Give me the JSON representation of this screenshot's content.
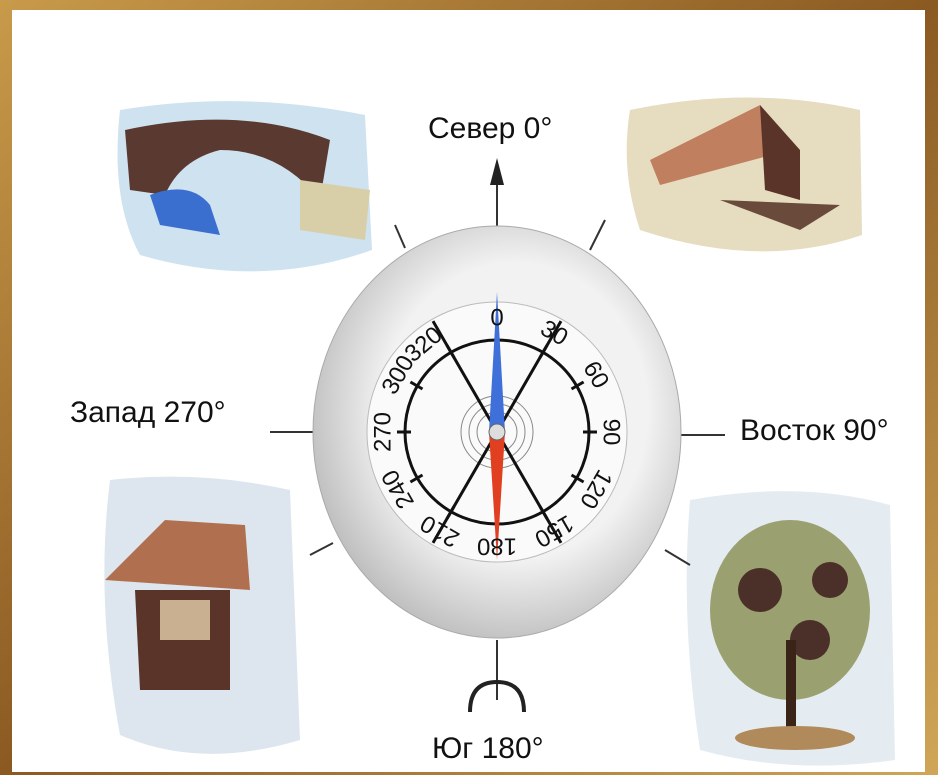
{
  "labels": {
    "north": "Север 0°",
    "east": "Восток 90°",
    "south": "Юг 180°",
    "west": "Запад 270°"
  },
  "dial": [
    "0",
    "30",
    "60",
    "90",
    "120",
    "150",
    "180",
    "210",
    "240",
    "270",
    "300",
    "320"
  ]
}
